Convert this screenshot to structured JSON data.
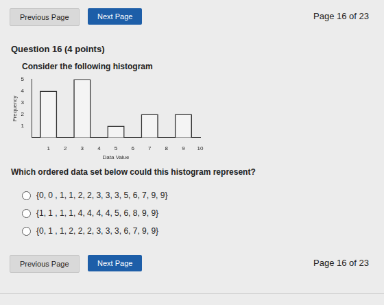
{
  "header": {
    "previous": "Previous Page",
    "next": "Next Page",
    "page": "Page 16 of 23"
  },
  "question": {
    "title": "Question 16 (4 points)",
    "prompt": "Consider the following histogram",
    "ask": "Which ordered data set below could this histogram represent?",
    "options": [
      "{0, 0 , 1, 1, 2, 2, 3, 3, 3, 5, 6, 7, 9, 9}",
      "{1, 1 , 1, 1, 4, 4, 4, 4, 5, 6, 8, 9, 9}",
      "{0, 1 , 1, 2, 2, 2, 3, 3, 3, 6, 7, 9, 9}"
    ]
  },
  "footer": {
    "previous": "Previous Page",
    "next": "Next Page",
    "page": "Page 16 of 23"
  },
  "chart_data": {
    "type": "histogram",
    "x_label": "Data Value",
    "y_label": "Frequency",
    "bins": [
      0,
      2,
      4,
      6,
      8,
      10
    ],
    "values": [
      4,
      5,
      1,
      2,
      2
    ],
    "color": "#f4f4f4",
    "xlim": [
      0,
      10
    ],
    "xticks": [
      1,
      2,
      3,
      4,
      5,
      6,
      7,
      8,
      9,
      10
    ],
    "ylim": [
      0,
      5
    ],
    "yticks": [
      1,
      2,
      3,
      4,
      5
    ],
    "grid": false
  }
}
